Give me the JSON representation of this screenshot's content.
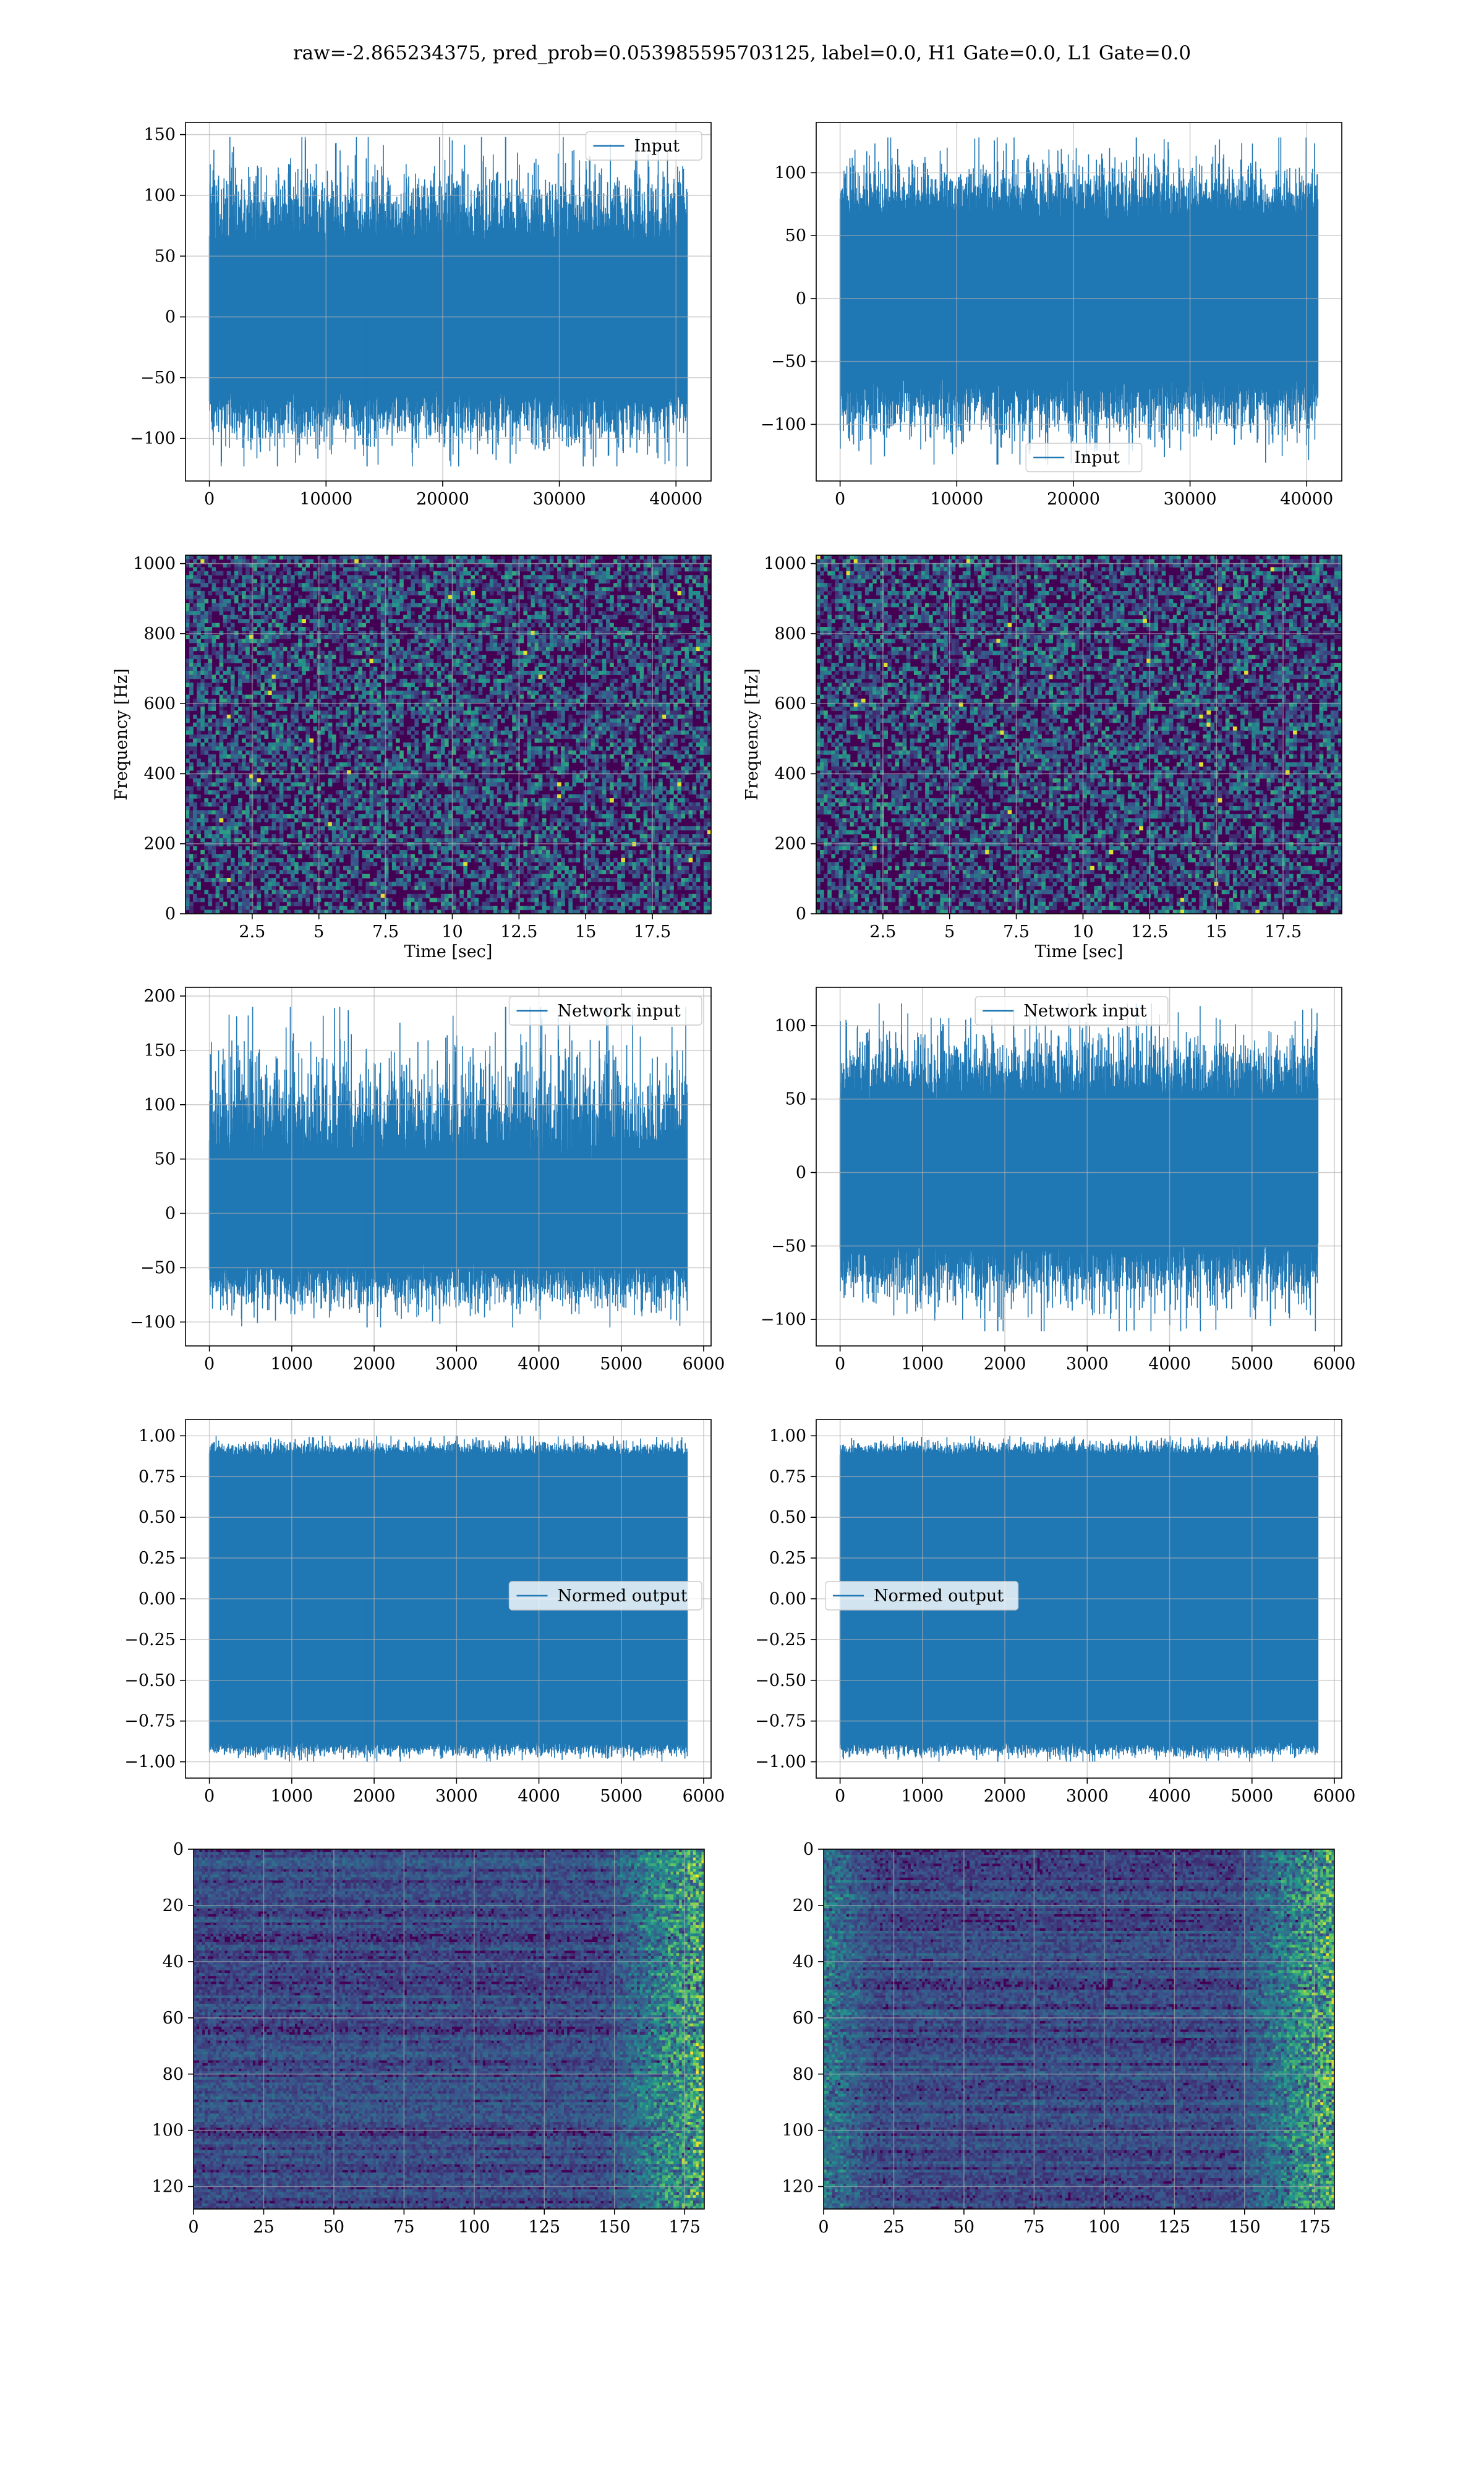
{
  "figure": {
    "title": "raw=-2.865234375, pred_prob=0.053985595703125, label=0.0, H1 Gate=0.0, L1 Gate=0.0"
  },
  "colors": {
    "line": "#1f77b4",
    "grid": "#b0b0b0",
    "viridis_low": "#440154",
    "viridis_mid": "#21918c",
    "viridis_high": "#fde725"
  },
  "chart_data": [
    {
      "id": "r1c1",
      "type": "line",
      "title": "",
      "xlabel": "",
      "ylabel": "",
      "xlim": [
        -2048,
        43008
      ],
      "ylim": [
        -135,
        160
      ],
      "xticks": [
        0,
        10000,
        20000,
        30000,
        40000
      ],
      "yticks": [
        -100,
        -50,
        0,
        50,
        100,
        150
      ],
      "legend": {
        "label": "Input",
        "loc": "upper right"
      },
      "series": [
        {
          "name": "Input",
          "x": [
            0,
            40960
          ],
          "mean": 0,
          "band": [
            -60,
            60
          ],
          "max": 148,
          "min": -123
        }
      ]
    },
    {
      "id": "r1c2",
      "type": "line",
      "title": "",
      "xlabel": "",
      "ylabel": "",
      "xlim": [
        -2048,
        43008
      ],
      "ylim": [
        -145,
        140
      ],
      "xticks": [
        0,
        10000,
        20000,
        30000,
        40000
      ],
      "yticks": [
        -100,
        -50,
        0,
        50,
        100
      ],
      "legend": {
        "label": "Input",
        "loc": "lower center"
      },
      "series": [
        {
          "name": "Input",
          "x": [
            0,
            40960
          ],
          "mean": 0,
          "band": [
            -62,
            62
          ],
          "max": 128,
          "min": -132
        }
      ]
    },
    {
      "id": "r2c1",
      "type": "heatmap",
      "title": "",
      "xlabel": "Time [sec]",
      "ylabel": "Frequency [Hz]",
      "xlim": [
        0,
        19.7
      ],
      "ylim": [
        0,
        1024
      ],
      "xticks": [
        2.5,
        5.0,
        7.5,
        10.0,
        12.5,
        15.0,
        17.5
      ],
      "yticks": [
        0,
        200,
        400,
        600,
        800,
        1000
      ],
      "colormap": "viridis"
    },
    {
      "id": "r2c2",
      "type": "heatmap",
      "title": "",
      "xlabel": "Time [sec]",
      "ylabel": "Frequency [Hz]",
      "xlim": [
        0,
        19.7
      ],
      "ylim": [
        0,
        1024
      ],
      "xticks": [
        2.5,
        5.0,
        7.5,
        10.0,
        12.5,
        15.0,
        17.5
      ],
      "yticks": [
        0,
        200,
        400,
        600,
        800,
        1000
      ],
      "colormap": "viridis"
    },
    {
      "id": "r3c1",
      "type": "line",
      "title": "",
      "xlabel": "",
      "ylabel": "",
      "xlim": [
        -290,
        6090
      ],
      "ylim": [
        -122,
        208
      ],
      "xticks": [
        0,
        1000,
        2000,
        3000,
        4000,
        5000,
        6000
      ],
      "yticks": [
        -100,
        -50,
        0,
        50,
        100,
        150,
        200
      ],
      "legend": {
        "label": "Network input",
        "loc": "upper right"
      },
      "series": [
        {
          "name": "Network input",
          "x": [
            0,
            5800
          ],
          "mean": 0,
          "band": [
            -45,
            45
          ],
          "max": 190,
          "min": -105
        }
      ]
    },
    {
      "id": "r3c2",
      "type": "line",
      "title": "",
      "xlabel": "",
      "ylabel": "",
      "xlim": [
        -290,
        6090
      ],
      "ylim": [
        -118,
        126
      ],
      "xticks": [
        0,
        1000,
        2000,
        3000,
        4000,
        5000,
        6000
      ],
      "yticks": [
        -100,
        -50,
        0,
        50,
        100
      ],
      "legend": {
        "label": "Network input",
        "loc": "upper center"
      },
      "series": [
        {
          "name": "Network input",
          "x": [
            0,
            5800
          ],
          "mean": 0,
          "band": [
            -48,
            48
          ],
          "max": 115,
          "min": -108
        }
      ]
    },
    {
      "id": "r4c1",
      "type": "line",
      "title": "",
      "xlabel": "",
      "ylabel": "",
      "xlim": [
        -290,
        6090
      ],
      "ylim": [
        -1.1,
        1.1
      ],
      "xticks": [
        0,
        1000,
        2000,
        3000,
        4000,
        5000,
        6000
      ],
      "yticks": [
        -1.0,
        -0.75,
        -0.5,
        -0.25,
        0.0,
        0.25,
        0.5,
        0.75,
        1.0
      ],
      "ytick_labels": [
        "−1.00",
        "−0.75",
        "−0.50",
        "−0.25",
        "0.00",
        "0.25",
        "0.50",
        "0.75",
        "1.00"
      ],
      "legend": {
        "label": "Normed output",
        "loc": "center right"
      },
      "series": [
        {
          "name": "Normed output",
          "x": [
            0,
            5800
          ],
          "mean": 0,
          "band": [
            -0.88,
            0.88
          ],
          "max": 1.0,
          "min": -1.0
        }
      ]
    },
    {
      "id": "r4c2",
      "type": "line",
      "title": "",
      "xlabel": "",
      "ylabel": "",
      "xlim": [
        -290,
        6090
      ],
      "ylim": [
        -1.1,
        1.1
      ],
      "xticks": [
        0,
        1000,
        2000,
        3000,
        4000,
        5000,
        6000
      ],
      "yticks": [
        -1.0,
        -0.75,
        -0.5,
        -0.25,
        0.0,
        0.25,
        0.5,
        0.75,
        1.0
      ],
      "ytick_labels": [
        "−1.00",
        "−0.75",
        "−0.50",
        "−0.25",
        "0.00",
        "0.25",
        "0.50",
        "0.75",
        "1.00"
      ],
      "legend": {
        "label": "Normed output",
        "loc": "center left"
      },
      "series": [
        {
          "name": "Normed output",
          "x": [
            0,
            5800
          ],
          "mean": 0,
          "band": [
            -0.88,
            0.88
          ],
          "max": 1.0,
          "min": -1.0
        }
      ]
    },
    {
      "id": "r5c1",
      "type": "heatmap",
      "title": "",
      "xlabel": "",
      "ylabel": "",
      "xlim": [
        0,
        182
      ],
      "ylim": [
        128,
        0
      ],
      "inverted_y": true,
      "xticks": [
        0,
        25,
        50,
        75,
        100,
        125,
        150,
        175
      ],
      "yticks": [
        0,
        20,
        40,
        60,
        80,
        100,
        120
      ],
      "colormap": "viridis"
    },
    {
      "id": "r5c2",
      "type": "heatmap",
      "title": "",
      "xlabel": "",
      "ylabel": "",
      "xlim": [
        0,
        182
      ],
      "ylim": [
        128,
        0
      ],
      "inverted_y": true,
      "xticks": [
        0,
        25,
        50,
        75,
        100,
        125,
        150,
        175
      ],
      "yticks": [
        0,
        20,
        40,
        60,
        80,
        100,
        120
      ],
      "colormap": "viridis"
    }
  ]
}
